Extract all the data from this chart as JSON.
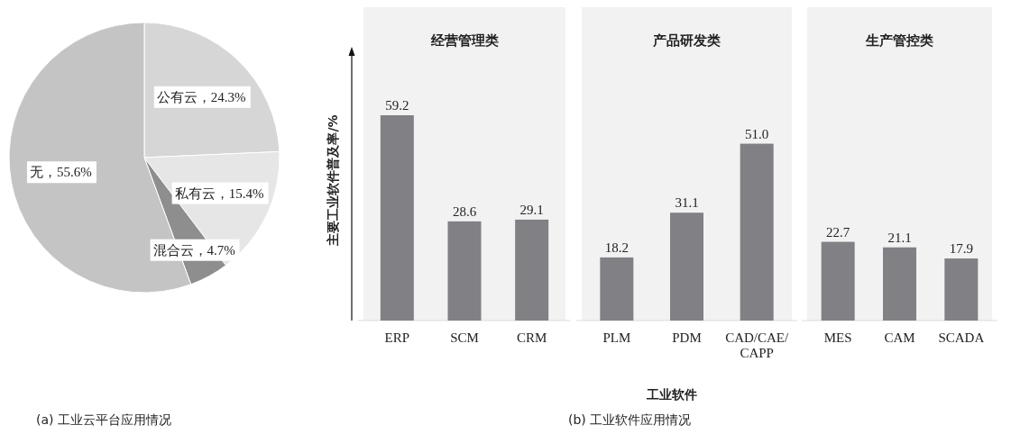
{
  "chart_data": [
    {
      "type": "pie",
      "categories": [
        "公有云",
        "私有云",
        "混合云",
        "无"
      ],
      "values": [
        24.3,
        15.4,
        4.7,
        55.6
      ],
      "value_labels": [
        "24.3%",
        "15.4%",
        "4.7%",
        "55.6%"
      ],
      "colors": [
        "#d6d6d6",
        "#e6e6e6",
        "#8e8e8e",
        "#c4c4c4"
      ],
      "annotations": [
        "(a) 工业云平台应用情况"
      ]
    },
    {
      "type": "bar",
      "title": "经营管理类",
      "ylabel": "主要工业软件普及率/%",
      "categories": [
        "ERP",
        "SCM",
        "CRM"
      ],
      "values": [
        59.2,
        28.6,
        29.1
      ],
      "value_labels": [
        "59.2",
        "28.6",
        "29.1"
      ],
      "color": "#808085"
    },
    {
      "type": "bar",
      "title": "产品研发类",
      "xlabel": "工业软件",
      "categories": [
        "PLM",
        "PDM",
        "CAD/CAE/CAPP"
      ],
      "values": [
        18.2,
        31.1,
        51.0
      ],
      "value_labels": [
        "18.2",
        "31.1",
        "51.0"
      ],
      "color": "#808085",
      "annotations": [
        "(b) 工业软件应用情况"
      ]
    },
    {
      "type": "bar",
      "title": "生产管控类",
      "categories": [
        "MES",
        "CAM",
        "SCADA"
      ],
      "values": [
        22.7,
        21.1,
        17.9
      ],
      "value_labels": [
        "22.7",
        "21.1",
        "17.9"
      ],
      "color": "#808085"
    }
  ]
}
